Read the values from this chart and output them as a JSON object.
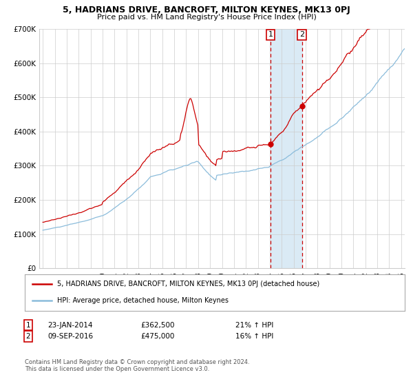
{
  "title": "5, HADRIANS DRIVE, BANCROFT, MILTON KEYNES, MK13 0PJ",
  "subtitle": "Price paid vs. HM Land Registry's House Price Index (HPI)",
  "legend_line1": "5, HADRIANS DRIVE, BANCROFT, MILTON KEYNES, MK13 0PJ (detached house)",
  "legend_line2": "HPI: Average price, detached house, Milton Keynes",
  "sale1_date": "23-JAN-2014",
  "sale1_price": "£362,500",
  "sale1_hpi": "21% ↑ HPI",
  "sale2_date": "09-SEP-2016",
  "sale2_price": "£475,000",
  "sale2_hpi": "16% ↑ HPI",
  "footer1": "Contains HM Land Registry data © Crown copyright and database right 2024.",
  "footer2": "This data is licensed under the Open Government Licence v3.0.",
  "hpi_color": "#8bbcdb",
  "price_color": "#cc0000",
  "bg_color": "#ffffff",
  "grid_color": "#cccccc",
  "highlight_color": "#daeaf5",
  "dashed_line_color": "#cc0000",
  "ylim_min": 0,
  "ylim_max": 700000,
  "yticks": [
    0,
    100000,
    200000,
    300000,
    400000,
    500000,
    600000,
    700000
  ],
  "ytick_labels": [
    "£0",
    "£100K",
    "£200K",
    "£300K",
    "£400K",
    "£500K",
    "£600K",
    "£700K"
  ],
  "sale1_year": 2014.06,
  "sale2_year": 2016.69,
  "highlight_start": 2014.06,
  "highlight_end": 2016.69,
  "dashed_line1_year": 2014.06,
  "dashed_line2_year": 2016.69,
  "marker1_value": 362500,
  "marker2_value": 475000,
  "xmin": 1995.0,
  "xmax": 2025.3
}
